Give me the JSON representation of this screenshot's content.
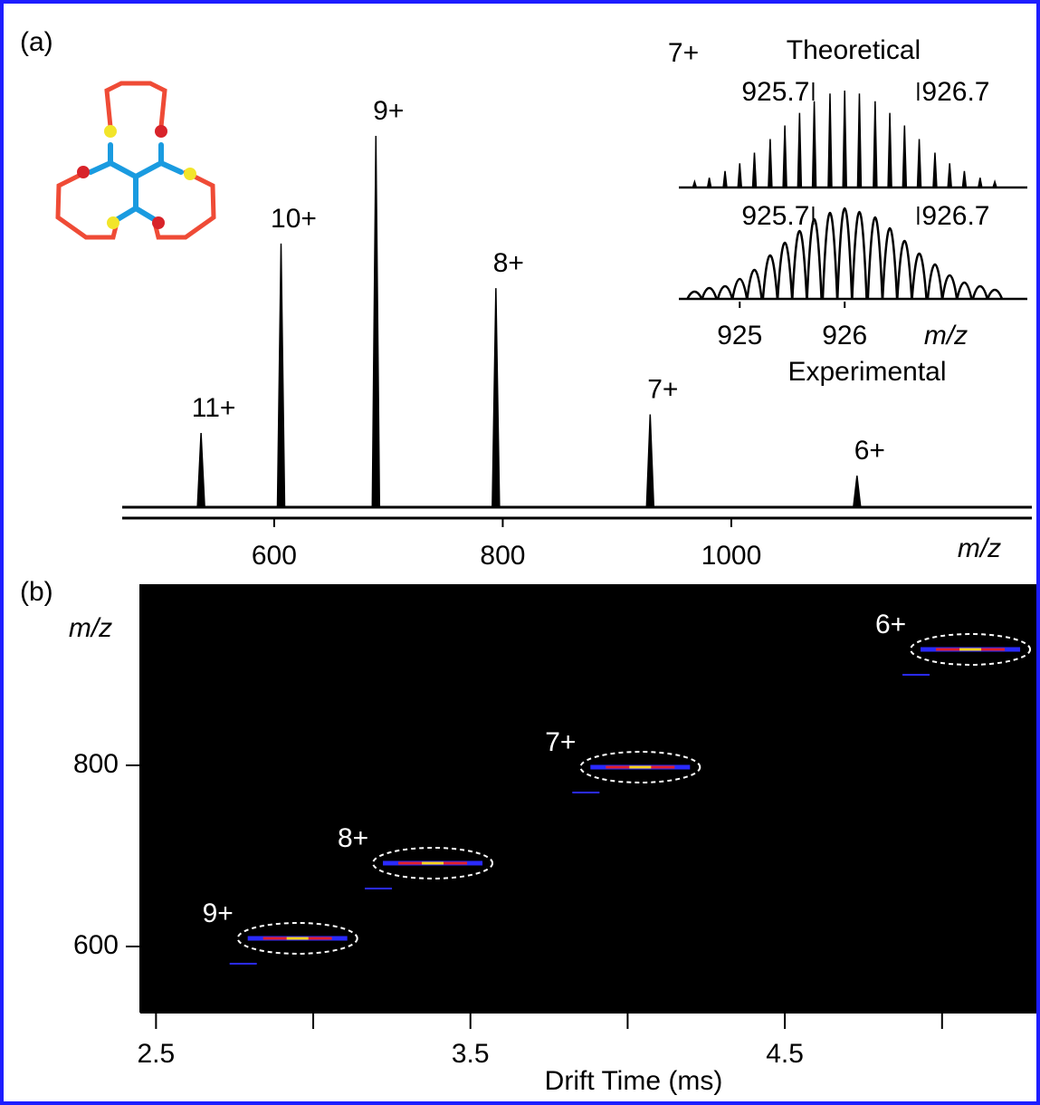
{
  "chart_data": [
    {
      "type": "spectrum",
      "panel": "(a)",
      "x": [
        536,
        606,
        689,
        794,
        929,
        1110
      ],
      "values": [
        20,
        71,
        100,
        59,
        25,
        8.5
      ],
      "labels": [
        "11+",
        "10+",
        "9+",
        "8+",
        "7+",
        "6+"
      ],
      "xlim": [
        467,
        1263
      ],
      "ylim": [
        0,
        100
      ],
      "xticks": [
        600,
        800,
        1000
      ],
      "xlabel": "m/z",
      "color": "#000000"
    },
    {
      "type": "isotope",
      "label": "7+",
      "x": [
        924.57,
        924.71,
        924.86,
        925.0,
        925.14,
        925.29,
        925.43,
        925.57,
        925.71,
        925.86,
        926.0,
        926.14,
        926.29,
        926.43,
        926.57,
        926.71,
        926.86,
        927.0,
        927.14,
        927.29,
        927.43
      ],
      "series": [
        {
          "name": "Theoretical",
          "color": "#000000",
          "values": [
            6,
            10,
            17,
            25,
            36,
            50,
            64,
            77,
            89,
            97,
            100,
            97,
            89,
            77,
            64,
            50,
            36,
            25,
            17,
            10,
            6
          ]
        },
        {
          "name": "Experimental",
          "color": "#000000",
          "values": [
            8,
            12,
            14,
            22,
            32,
            48,
            62,
            75,
            88,
            95,
            100,
            96,
            90,
            78,
            64,
            50,
            38,
            26,
            18,
            14,
            10
          ]
        }
      ],
      "xlim": [
        924.42,
        927.74
      ],
      "ylim": [
        0,
        100
      ],
      "xticks": [
        925,
        926
      ],
      "xlabel": "m/z",
      "markers": [
        925.7,
        926.7
      ]
    },
    {
      "type": "drift",
      "panel": "(b)",
      "x": [
        2.95,
        3.38,
        4.04,
        5.09
      ],
      "values": [
        609,
        692,
        798,
        928
      ],
      "labels": [
        "9+",
        "8+",
        "7+",
        "6+"
      ],
      "xlim": [
        2.45,
        5.3
      ],
      "ylim": [
        527,
        1000
      ],
      "xticks": [
        2.5,
        3.5,
        4.5
      ],
      "xminor_ticks": [
        3,
        4,
        5
      ],
      "yticks": [
        600,
        800
      ],
      "xlabel": "Drift Time (ms)",
      "ylabel": "m/z",
      "background": "#000000"
    }
  ]
}
